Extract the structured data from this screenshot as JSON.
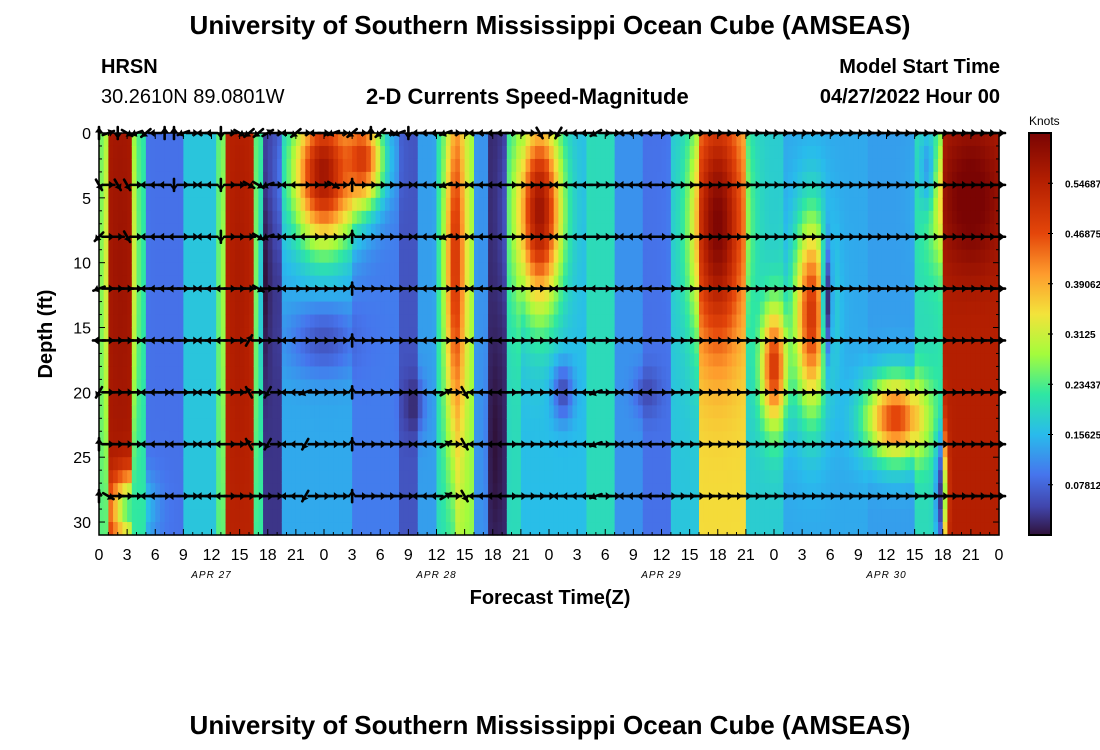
{
  "header": {
    "title": "University of Southern Mississippi Ocean Cube (AMSEAS)",
    "station": "HRSN",
    "coords": "30.2610N  89.0801W",
    "subtitle": "2-D Currents Speed-Magnitude",
    "model_label": "Model Start Time",
    "model_time": "04/27/2022 Hour 00"
  },
  "footer": {
    "title": "University of Southern Mississippi Ocean Cube (AMSEAS)"
  },
  "chart_data": {
    "type": "heatmap",
    "title": "2-D Currents Speed-Magnitude",
    "xlabel": "Forecast Time(Z)",
    "ylabel": "Depth (ft)",
    "x_range_hours": [
      0,
      96
    ],
    "ylim": [
      0,
      31
    ],
    "y_inverted": true,
    "xticks": [
      "0",
      "3",
      "6",
      "9",
      "12",
      "15",
      "18",
      "21",
      "0",
      "3",
      "6",
      "9",
      "12",
      "15",
      "18",
      "21",
      "0",
      "3",
      "6",
      "9",
      "12",
      "15",
      "18",
      "21",
      "0",
      "3",
      "6",
      "9",
      "12",
      "15",
      "18",
      "21",
      "0"
    ],
    "yticks": [
      0,
      5,
      10,
      15,
      20,
      25,
      30
    ],
    "date_labels": [
      {
        "text": "APR 27",
        "hour": 12
      },
      {
        "text": "APR 28",
        "hour": 36
      },
      {
        "text": "APR 29",
        "hour": 60
      },
      {
        "text": "APR 30",
        "hour": 84
      }
    ],
    "colorbar": {
      "unit": "Knots",
      "range": [
        0,
        0.625
      ],
      "ticks": [
        "0.07812",
        "0.15625",
        "0.23437",
        "0.3125",
        "0.39062",
        "0.46875",
        "0.54687"
      ]
    },
    "vector_depths_ft": [
      0,
      4,
      8,
      12,
      16,
      20,
      24,
      28
    ],
    "speed_bands": [
      {
        "t0": 0,
        "t1": 1,
        "v": 0.24
      },
      {
        "t0": 1,
        "t1": 3.6,
        "v": 0.56
      },
      {
        "t0": 3.6,
        "t1": 5.2,
        "v": 0.21
      },
      {
        "t0": 5.2,
        "t1": 9,
        "v": 0.09
      },
      {
        "t0": 9,
        "t1": 12.5,
        "v": 0.17
      },
      {
        "t0": 12.5,
        "t1": 13.5,
        "v": 0.24
      },
      {
        "t0": 13.5,
        "t1": 16.5,
        "v": 0.54
      },
      {
        "t0": 16.5,
        "t1": 17.5,
        "v": 0.22
      },
      {
        "t0": 17.5,
        "t1": 19.5,
        "v": 0.03
      },
      {
        "t0": 19.5,
        "t1": 23,
        "v": 0.14
      },
      {
        "t0": 23,
        "t1": 27,
        "v": 0.14
      },
      {
        "t0": 27,
        "t1": 32,
        "v": 0.1
      },
      {
        "t0": 32,
        "t1": 34,
        "v": 0.06
      },
      {
        "t0": 34,
        "t1": 36,
        "v": 0.13
      },
      {
        "t0": 36,
        "t1": 38,
        "v": 0.2
      },
      {
        "t0": 38,
        "t1": 40,
        "v": 0.27
      },
      {
        "t0": 40,
        "t1": 41.5,
        "v": 0.12
      },
      {
        "t0": 41.5,
        "t1": 43.5,
        "v": 0.02
      },
      {
        "t0": 43.5,
        "t1": 45,
        "v": 0.2
      },
      {
        "t0": 45,
        "t1": 49,
        "v": 0.16
      },
      {
        "t0": 49,
        "t1": 52,
        "v": 0.16
      },
      {
        "t0": 52,
        "t1": 55,
        "v": 0.2
      },
      {
        "t0": 55,
        "t1": 58,
        "v": 0.12
      },
      {
        "t0": 58,
        "t1": 61,
        "v": 0.09
      },
      {
        "t0": 61,
        "t1": 64,
        "v": 0.17
      },
      {
        "t0": 64,
        "t1": 69,
        "v": 0.35
      },
      {
        "t0": 69,
        "t1": 73,
        "v": 0.18
      },
      {
        "t0": 73,
        "t1": 78,
        "v": 0.14
      },
      {
        "t0": 78,
        "t1": 82,
        "v": 0.14
      },
      {
        "t0": 82,
        "t1": 87,
        "v": 0.13
      },
      {
        "t0": 87,
        "t1": 90,
        "v": 0.2
      },
      {
        "t0": 90,
        "t1": 96,
        "v": 0.55
      }
    ],
    "speed_blobs": [
      {
        "t": 2.3,
        "d": 10,
        "rt": 1.4,
        "rd": 16,
        "v": 0.58
      },
      {
        "t": 15,
        "d": 12,
        "rt": 1.3,
        "rd": 16,
        "v": 0.56
      },
      {
        "t": 24,
        "d": 3,
        "rt": 3.5,
        "rd": 6,
        "v": 0.58
      },
      {
        "t": 28,
        "d": 2,
        "rt": 2.5,
        "rd": 4,
        "v": 0.5
      },
      {
        "t": 17.8,
        "d": 12,
        "rt": 0.5,
        "rd": 8,
        "v": 0.0
      },
      {
        "t": 38,
        "d": 10,
        "rt": 1.2,
        "rd": 16,
        "v": 0.5
      },
      {
        "t": 47,
        "d": 6,
        "rt": 2.5,
        "rd": 8,
        "v": 0.58
      },
      {
        "t": 42.3,
        "d": 24,
        "rt": 0.8,
        "rd": 8,
        "v": 0.0
      },
      {
        "t": 33.5,
        "d": 21,
        "rt": 1.2,
        "rd": 2.5,
        "v": 0.02
      },
      {
        "t": 49.5,
        "d": 20,
        "rt": 1.2,
        "rd": 2.5,
        "v": 0.05
      },
      {
        "t": 58.5,
        "d": 20,
        "rt": 1.5,
        "rd": 2,
        "v": 0.05
      },
      {
        "t": 66,
        "d": 7,
        "rt": 2.8,
        "rd": 10,
        "v": 0.62
      },
      {
        "t": 76,
        "d": 14,
        "rt": 2,
        "rd": 8,
        "v": 0.5
      },
      {
        "t": 72,
        "d": 18,
        "rt": 1.5,
        "rd": 5,
        "v": 0.5
      },
      {
        "t": 77.7,
        "d": 13,
        "rt": 0.6,
        "rd": 6,
        "v": 0.02
      },
      {
        "t": 85,
        "d": 22,
        "rt": 3.5,
        "rd": 3.5,
        "v": 0.48
      },
      {
        "t": 88.5,
        "d": 3,
        "rt": 1,
        "rd": 3.5,
        "v": 0.07
      },
      {
        "t": 93,
        "d": 5,
        "rt": 3.5,
        "rd": 6,
        "v": 0.64
      },
      {
        "t": 94,
        "d": 17,
        "rt": 2.5,
        "rd": 4,
        "v": 0.55
      },
      {
        "t": 89.8,
        "d": 28,
        "rt": 0.6,
        "rd": 5,
        "v": 0.03
      },
      {
        "t": 3.5,
        "d": 29,
        "rt": 2.5,
        "rd": 3,
        "v": 0.22
      },
      {
        "t": 24,
        "d": 16,
        "rt": 4,
        "rd": 3,
        "v": 0.06
      }
    ],
    "vector_angles_deg": [
      [
        90,
        300,
        225,
        200,
        180,
        240,
        90,
        90
      ],
      [
        20,
        0,
        0,
        0,
        0,
        0,
        0,
        330
      ],
      [
        270,
        300,
        0,
        0,
        0,
        0,
        0,
        0
      ],
      [
        330,
        300,
        300,
        0,
        0,
        0,
        0,
        0
      ],
      [
        200,
        0,
        0,
        0,
        0,
        0,
        0,
        0
      ],
      [
        220,
        180,
        180,
        180,
        180,
        180,
        180,
        180
      ],
      [
        180,
        180,
        180,
        180,
        180,
        180,
        180,
        180
      ],
      [
        90,
        180,
        180,
        180,
        180,
        0,
        0,
        0
      ],
      [
        90,
        270,
        180,
        180,
        180,
        180,
        180,
        180
      ],
      [
        200,
        0,
        0,
        0,
        0,
        0,
        0,
        0
      ],
      [
        0,
        0,
        0,
        0,
        0,
        0,
        0,
        0
      ],
      [
        180,
        180,
        180,
        180,
        180,
        180,
        180,
        180
      ],
      [
        180,
        180,
        180,
        180,
        180,
        180,
        180,
        180
      ],
      [
        270,
        270,
        270,
        180,
        180,
        180,
        180,
        180
      ],
      [
        0,
        0,
        0,
        0,
        0,
        0,
        0,
        0
      ],
      [
        330,
        0,
        0,
        0,
        0,
        0,
        0,
        0
      ],
      [
        220,
        330,
        0,
        0,
        60,
        120,
        120,
        0
      ],
      [
        220,
        330,
        330,
        330,
        0,
        0,
        0,
        0
      ],
      [
        30,
        200,
        200,
        0,
        0,
        240,
        240,
        0
      ],
      [
        0,
        0,
        0,
        0,
        0,
        0,
        0,
        0
      ],
      [
        180,
        180,
        180,
        180,
        180,
        180,
        180,
        180
      ],
      [
        220,
        180,
        180,
        0,
        180,
        180,
        180,
        180
      ],
      [
        0,
        0,
        180,
        0,
        0,
        200,
        240,
        240
      ],
      [
        180,
        0,
        0,
        0,
        0,
        0,
        0,
        0
      ],
      [
        0,
        0,
        0,
        0,
        0,
        0,
        0,
        0
      ],
      [
        200,
        330,
        0,
        0,
        0,
        0,
        0,
        0
      ],
      [
        0,
        0,
        0,
        0,
        0,
        0,
        0,
        0
      ],
      [
        220,
        90,
        90,
        90,
        90,
        90,
        90,
        90
      ],
      [
        0,
        0,
        0,
        0,
        0,
        0,
        0,
        0
      ],
      [
        90,
        0,
        0,
        0,
        0,
        0,
        0,
        0
      ],
      [
        220,
        0,
        0,
        0,
        0,
        0,
        0,
        0
      ],
      [
        0,
        0,
        0,
        0,
        0,
        0,
        0,
        0
      ],
      [
        200,
        0,
        0,
        0,
        0,
        0,
        0,
        0
      ],
      [
        270,
        0,
        0,
        0,
        0,
        0,
        0,
        0
      ],
      [
        180,
        180,
        180,
        180,
        180,
        180,
        180,
        180
      ],
      [
        180,
        180,
        180,
        180,
        180,
        180,
        180,
        180
      ],
      [
        180,
        180,
        180,
        180,
        180,
        180,
        180,
        180
      ],
      [
        200,
        200,
        200,
        0,
        0,
        30,
        30,
        30
      ],
      [
        0,
        0,
        0,
        0,
        0,
        0,
        0,
        0
      ],
      [
        0,
        0,
        0,
        0,
        0,
        300,
        300,
        300
      ],
      [
        180,
        180,
        180,
        180,
        180,
        180,
        180,
        180
      ],
      [
        180,
        180,
        180,
        180,
        180,
        180,
        180,
        180
      ],
      [
        180,
        180,
        180,
        180,
        180,
        180,
        180,
        180
      ],
      [
        180,
        180,
        180,
        180,
        180,
        180,
        180,
        180
      ],
      [
        0,
        0,
        0,
        0,
        0,
        0,
        0,
        0
      ],
      [
        0,
        0,
        0,
        0,
        0,
        0,
        0,
        0
      ],
      [
        0,
        0,
        0,
        0,
        0,
        0,
        0,
        0
      ],
      [
        300,
        0,
        0,
        0,
        0,
        0,
        0,
        0
      ],
      [
        0,
        0,
        0,
        0,
        0,
        0,
        0,
        0
      ],
      [
        240,
        180,
        180,
        180,
        180,
        180,
        180,
        180
      ],
      [
        180,
        180,
        180,
        180,
        180,
        180,
        180,
        180
      ],
      [
        180,
        180,
        180,
        180,
        180,
        180,
        180,
        180
      ],
      [
        180,
        180,
        180,
        180,
        180,
        180,
        180,
        180
      ],
      [
        210,
        0,
        0,
        180,
        180,
        200,
        200,
        200
      ],
      [
        0,
        0,
        0,
        0,
        0,
        0,
        0,
        0
      ],
      [
        0,
        0,
        0,
        0,
        0,
        0,
        0,
        0
      ],
      [
        180,
        180,
        180,
        180,
        180,
        180,
        180,
        180
      ],
      [
        180,
        180,
        180,
        180,
        180,
        180,
        180,
        180
      ],
      [
        180,
        180,
        180,
        180,
        180,
        180,
        180,
        180
      ],
      [
        180,
        180,
        180,
        180,
        180,
        180,
        180,
        180
      ],
      [
        0,
        0,
        0,
        0,
        0,
        0,
        0,
        0
      ],
      [
        0,
        0,
        0,
        0,
        0,
        0,
        0,
        0
      ],
      [
        0,
        0,
        0,
        0,
        0,
        0,
        0,
        0
      ],
      [
        0,
        0,
        0,
        0,
        0,
        0,
        0,
        0
      ],
      [
        0,
        0,
        0,
        0,
        0,
        0,
        0,
        0
      ],
      [
        0,
        0,
        0,
        0,
        0,
        0,
        0,
        0
      ],
      [
        0,
        0,
        0,
        0,
        0,
        0,
        0,
        0
      ],
      [
        0,
        0,
        0,
        0,
        0,
        0,
        0,
        0
      ],
      [
        0,
        0,
        0,
        0,
        0,
        0,
        0,
        0
      ],
      [
        0,
        0,
        0,
        0,
        0,
        0,
        0,
        0
      ],
      [
        0,
        0,
        0,
        0,
        0,
        0,
        0,
        0
      ],
      [
        0,
        0,
        0,
        0,
        0,
        0,
        0,
        0
      ],
      [
        0,
        0,
        0,
        0,
        0,
        0,
        0,
        0
      ],
      [
        0,
        0,
        0,
        0,
        0,
        0,
        0,
        0
      ],
      [
        0,
        0,
        0,
        0,
        0,
        0,
        0,
        0
      ],
      [
        0,
        0,
        0,
        0,
        0,
        0,
        0,
        0
      ],
      [
        0,
        0,
        0,
        0,
        0,
        0,
        0,
        0
      ],
      [
        0,
        0,
        0,
        0,
        0,
        0,
        0,
        0
      ],
      [
        0,
        0,
        0,
        0,
        0,
        0,
        0,
        0
      ],
      [
        0,
        0,
        0,
        0,
        0,
        0,
        0,
        0
      ],
      [
        0,
        0,
        0,
        0,
        0,
        0,
        0,
        0
      ],
      [
        0,
        0,
        0,
        0,
        0,
        0,
        0,
        0
      ],
      [
        0,
        0,
        0,
        0,
        0,
        0,
        0,
        0
      ],
      [
        0,
        0,
        0,
        0,
        0,
        0,
        0,
        0
      ],
      [
        0,
        0,
        0,
        0,
        0,
        0,
        0,
        0
      ],
      [
        0,
        0,
        0,
        0,
        0,
        0,
        0,
        0
      ],
      [
        0,
        0,
        0,
        0,
        0,
        0,
        0,
        0
      ],
      [
        0,
        0,
        0,
        0,
        0,
        0,
        0,
        0
      ],
      [
        0,
        0,
        0,
        0,
        0,
        0,
        0,
        0
      ],
      [
        0,
        0,
        0,
        0,
        0,
        0,
        0,
        0
      ],
      [
        0,
        0,
        0,
        0,
        0,
        0,
        0,
        0
      ],
      [
        0,
        0,
        0,
        0,
        0,
        0,
        0,
        0
      ],
      [
        0,
        0,
        0,
        0,
        0,
        0,
        0,
        0
      ],
      [
        0,
        0,
        0,
        0,
        0,
        0,
        0,
        0
      ],
      [
        0,
        0,
        0,
        0,
        0,
        0,
        0,
        0
      ],
      [
        0,
        0,
        0,
        0,
        0,
        0,
        0,
        0
      ],
      [
        0,
        0,
        0,
        0,
        0,
        0,
        0,
        0
      ]
    ]
  }
}
